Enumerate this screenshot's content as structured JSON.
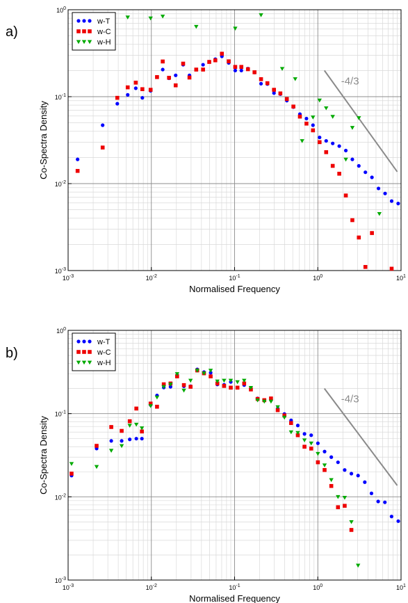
{
  "panels_meta": {
    "x_range": [
      0.001,
      10
    ],
    "y_range": [
      0.001,
      1
    ],
    "scale": "log-log",
    "grid": true,
    "legend_placement": "top-left"
  },
  "chart_data": [
    {
      "type": "scatter",
      "panel_label": "a)",
      "xlabel": "Normalised Frequency",
      "ylabel": "Co-Spectra Density",
      "xlim": [
        0.001,
        10
      ],
      "ylim": [
        0.001,
        1
      ],
      "x_scale": "log",
      "y_scale": "log",
      "x_ticks": [
        {
          "mant": "10",
          "exp": "-3"
        },
        {
          "mant": "10",
          "exp": "-2"
        },
        {
          "mant": "10",
          "exp": "-1"
        },
        {
          "mant": "10",
          "exp": "0"
        },
        {
          "mant": "10",
          "exp": "1"
        }
      ],
      "y_ticks": [
        {
          "mant": "10",
          "exp": "-3"
        },
        {
          "mant": "10",
          "exp": "-2"
        },
        {
          "mant": "10",
          "exp": "-1"
        },
        {
          "mant": "10",
          "exp": "0"
        }
      ],
      "reference_line": {
        "label": "-4/3",
        "slope": -1.3333,
        "x": [
          1.2,
          9.0
        ],
        "y": [
          0.2,
          0.0137
        ]
      },
      "series": [
        {
          "name": "w-T",
          "color": "#0000ff",
          "marker": "circle",
          "x": [
            0.0013,
            0.0026,
            0.0039,
            0.0052,
            0.0065,
            0.0078,
            0.0098,
            0.0117,
            0.0137,
            0.0163,
            0.0196,
            0.0241,
            0.0287,
            0.0346,
            0.0418,
            0.0496,
            0.0587,
            0.0704,
            0.085,
            0.1018,
            0.1206,
            0.1448,
            0.1736,
            0.2079,
            0.2478,
            0.2974,
            0.3548,
            0.4245,
            0.5089,
            0.6092,
            0.7305,
            0.8746,
            1.05,
            1.26,
            1.51,
            1.81,
            2.17,
            2.6,
            3.11,
            3.73,
            4.47,
            5.36,
            6.43,
            7.71,
            9.24
          ],
          "y": [
            0.019,
            0.047,
            0.083,
            0.105,
            0.125,
            0.097,
            0.117,
            0.168,
            0.205,
            0.163,
            0.176,
            0.233,
            0.176,
            0.205,
            0.233,
            0.252,
            0.27,
            0.291,
            0.245,
            0.2,
            0.2,
            0.21,
            0.19,
            0.141,
            0.14,
            0.11,
            0.107,
            0.09,
            0.076,
            0.063,
            0.056,
            0.047,
            0.034,
            0.031,
            0.029,
            0.027,
            0.024,
            0.019,
            0.016,
            0.0135,
            0.0118,
            0.0088,
            0.0077,
            0.0063,
            0.0059
          ]
        },
        {
          "name": "w-C",
          "color": "#ee0000",
          "marker": "square",
          "x": [
            0.0013,
            0.0026,
            0.0039,
            0.0052,
            0.0065,
            0.0078,
            0.0098,
            0.0117,
            0.0137,
            0.0163,
            0.0196,
            0.0241,
            0.0287,
            0.0346,
            0.0418,
            0.0496,
            0.0587,
            0.0704,
            0.085,
            0.1018,
            0.1206,
            0.1448,
            0.1736,
            0.2079,
            0.2478,
            0.2974,
            0.3548,
            0.4245,
            0.5089,
            0.6092,
            0.7305,
            0.8746,
            1.05,
            1.26,
            1.51,
            1.81,
            2.17,
            2.6,
            3.11,
            3.73,
            4.47,
            5.36,
            6.43,
            7.71,
            9.24
          ],
          "y": [
            0.014,
            0.026,
            0.097,
            0.128,
            0.145,
            0.122,
            0.12,
            0.168,
            0.254,
            0.165,
            0.135,
            0.24,
            0.166,
            0.205,
            0.205,
            0.251,
            0.262,
            0.312,
            0.255,
            0.22,
            0.22,
            0.207,
            0.191,
            0.159,
            0.143,
            0.12,
            0.109,
            0.094,
            0.077,
            0.059,
            0.049,
            0.041,
            0.03,
            0.023,
            0.016,
            0.013,
            0.0073,
            0.0038,
            0.0024,
            0.0011,
            0.0027,
            null,
            null,
            0.00105,
            null
          ]
        },
        {
          "name": "w-H",
          "color": "#00aa00",
          "marker": "triangle-down",
          "x": [
            0.0052,
            0.0098,
            0.0137,
            0.0346,
            0.1018,
            0.2079,
            0.3733,
            0.5351,
            0.6478,
            0.8746,
            1.05,
            1.26,
            1.51,
            2.17,
            2.6,
            3.11,
            4.47,
            5.49
          ],
          "y": [
            0.82,
            0.8,
            0.84,
            0.64,
            0.61,
            0.87,
            0.21,
            0.16,
            0.031,
            0.058,
            0.091,
            0.074,
            0.059,
            0.019,
            0.044,
            0.057,
            null,
            0.0045
          ]
        }
      ]
    },
    {
      "type": "scatter",
      "panel_label": "b)",
      "xlabel": "Normalised Frequency",
      "ylabel": "Co-Spectra Density",
      "xlim": [
        0.001,
        10
      ],
      "ylim": [
        0.001,
        1
      ],
      "x_scale": "log",
      "y_scale": "log",
      "x_ticks": [
        {
          "mant": "10",
          "exp": "-3"
        },
        {
          "mant": "10",
          "exp": "-2"
        },
        {
          "mant": "10",
          "exp": "-1"
        },
        {
          "mant": "10",
          "exp": "0"
        },
        {
          "mant": "10",
          "exp": "1"
        }
      ],
      "y_ticks": [
        {
          "mant": "10",
          "exp": "-3"
        },
        {
          "mant": "10",
          "exp": "-2"
        },
        {
          "mant": "10",
          "exp": "-1"
        },
        {
          "mant": "10",
          "exp": "0"
        }
      ],
      "reference_line": {
        "label": "-4/3",
        "slope": -1.3333,
        "x": [
          1.2,
          9.0
        ],
        "y": [
          0.2,
          0.0137
        ]
      },
      "series": [
        {
          "name": "w-T",
          "color": "#0000ff",
          "marker": "circle",
          "x": [
            0.0011,
            0.0022,
            0.0033,
            0.0044,
            0.0055,
            0.0066,
            0.0077,
            0.0098,
            0.0117,
            0.0141,
            0.017,
            0.0204,
            0.0246,
            0.0296,
            0.0356,
            0.0429,
            0.0516,
            0.0621,
            0.0748,
            0.09,
            0.1083,
            0.1304,
            0.157,
            0.189,
            0.2275,
            0.2739,
            0.3297,
            0.3968,
            0.4776,
            0.5748,
            0.6918,
            0.8327,
            1.0022,
            1.2062,
            1.4518,
            1.7474,
            2.1031,
            2.5312,
            3.0465,
            3.6667,
            4.4131,
            5.3115,
            6.3928,
            7.6942,
            9.2605
          ],
          "y": [
            0.018,
            0.038,
            0.047,
            0.047,
            0.049,
            0.05,
            0.05,
            0.127,
            0.165,
            0.206,
            0.21,
            0.29,
            0.213,
            0.213,
            0.34,
            0.315,
            0.31,
            0.224,
            0.222,
            0.24,
            0.205,
            0.22,
            0.2,
            0.152,
            0.145,
            0.145,
            0.115,
            0.099,
            0.083,
            0.072,
            0.057,
            0.055,
            0.044,
            0.035,
            0.03,
            0.026,
            0.021,
            0.019,
            0.018,
            0.015,
            0.011,
            0.0088,
            0.0086,
            0.0058,
            0.0051
          ]
        },
        {
          "name": "w-C",
          "color": "#ee0000",
          "marker": "square",
          "x": [
            0.0011,
            0.0022,
            0.0033,
            0.0044,
            0.0055,
            0.0066,
            0.0077,
            0.0098,
            0.0117,
            0.0141,
            0.017,
            0.0204,
            0.0246,
            0.0296,
            0.0356,
            0.0429,
            0.0516,
            0.0621,
            0.0748,
            0.09,
            0.1083,
            0.1304,
            0.157,
            0.189,
            0.2275,
            0.2739,
            0.3297,
            0.3968,
            0.4776,
            0.5748,
            0.6918,
            0.8327,
            1.0022,
            1.2062,
            1.4518,
            1.7474,
            2.1031,
            2.5312
          ],
          "y": [
            0.019,
            0.041,
            0.069,
            0.062,
            0.081,
            0.115,
            0.061,
            0.132,
            0.121,
            0.225,
            0.23,
            0.28,
            0.22,
            0.21,
            0.33,
            0.305,
            0.28,
            0.23,
            0.215,
            0.205,
            0.205,
            0.23,
            0.195,
            0.15,
            0.145,
            0.152,
            0.11,
            0.095,
            0.077,
            0.055,
            0.04,
            0.038,
            0.026,
            0.021,
            0.0135,
            0.0075,
            0.0078,
            0.004
          ]
        },
        {
          "name": "w-H",
          "color": "#00aa00",
          "marker": "triangle-down",
          "x": [
            0.0011,
            0.0022,
            0.0033,
            0.0044,
            0.0055,
            0.0066,
            0.0077,
            0.0098,
            0.0117,
            0.0141,
            0.017,
            0.0204,
            0.0246,
            0.0296,
            0.0356,
            0.0429,
            0.0516,
            0.0621,
            0.0748,
            0.09,
            0.1083,
            0.1304,
            0.157,
            0.189,
            0.2275,
            0.2739,
            0.3297,
            0.3968,
            0.4776,
            0.5748,
            0.6918,
            0.8327,
            1.0022,
            1.2062,
            1.4518,
            1.7474,
            2.1031,
            2.5312,
            3.0465
          ],
          "y": [
            0.025,
            0.023,
            0.036,
            0.041,
            0.072,
            0.074,
            0.067,
            0.124,
            0.157,
            0.21,
            0.225,
            0.3,
            0.19,
            0.25,
            0.33,
            0.305,
            0.33,
            0.245,
            0.25,
            0.25,
            0.24,
            0.25,
            0.205,
            0.145,
            0.14,
            0.14,
            0.12,
            0.09,
            0.06,
            0.059,
            0.048,
            0.044,
            0.033,
            0.024,
            0.016,
            0.01,
            0.0098,
            0.005,
            0.0015
          ]
        }
      ]
    }
  ]
}
